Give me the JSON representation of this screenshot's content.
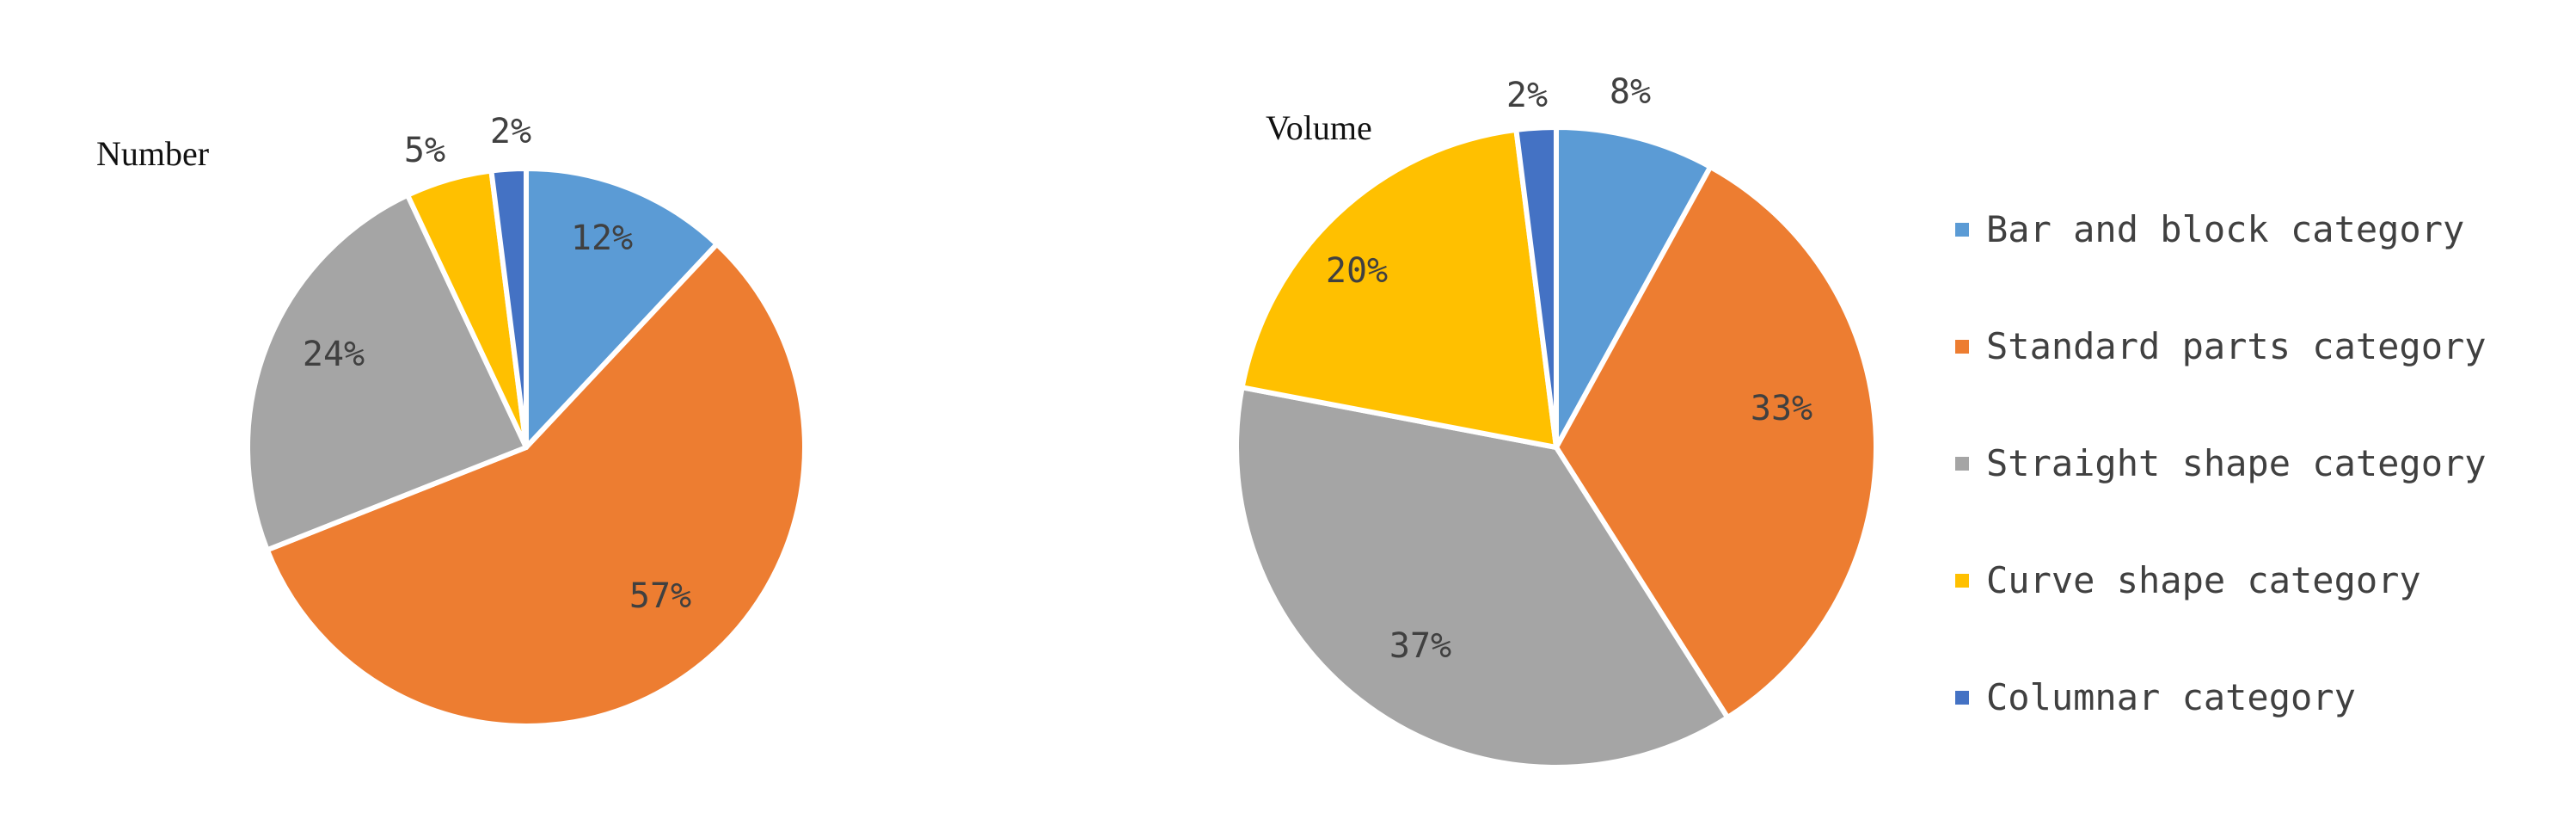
{
  "colors": {
    "background": "#ffffff",
    "slice_border": "#ffffff",
    "bar_and_block": "#5b9bd5",
    "standard_parts": "#ed7d31",
    "straight_shape": "#a5a5a5",
    "curve_shape": "#ffc000",
    "columnar": "#4472c4"
  },
  "chart_data": [
    {
      "type": "pie",
      "title": "Number",
      "categories": [
        "Bar and block category",
        "Standard parts category",
        "Straight shape category",
        "Curve shape category",
        "Columnar category"
      ],
      "values": [
        12,
        57,
        24,
        5,
        2
      ],
      "labels": [
        "12%",
        "57%",
        "24%",
        "5%",
        "2%"
      ],
      "legend": "none"
    },
    {
      "type": "pie",
      "title": "Volume",
      "categories": [
        "Bar and block category",
        "Standard parts category",
        "Straight shape category",
        "Curve shape category",
        "Columnar category"
      ],
      "values": [
        8,
        33,
        37,
        20,
        2
      ],
      "labels": [
        "8%",
        "33%",
        "37%",
        "20%",
        "2%"
      ],
      "legend": "right"
    }
  ],
  "legend": {
    "items": [
      {
        "label": "Bar and block category",
        "color": "#5b9bd5"
      },
      {
        "label": "Standard parts category",
        "color": "#ed7d31"
      },
      {
        "label": "Straight shape category",
        "color": "#a5a5a5"
      },
      {
        "label": "Curve shape category",
        "color": "#ffc000"
      },
      {
        "label": "Columnar category",
        "color": "#4472c4"
      }
    ]
  }
}
